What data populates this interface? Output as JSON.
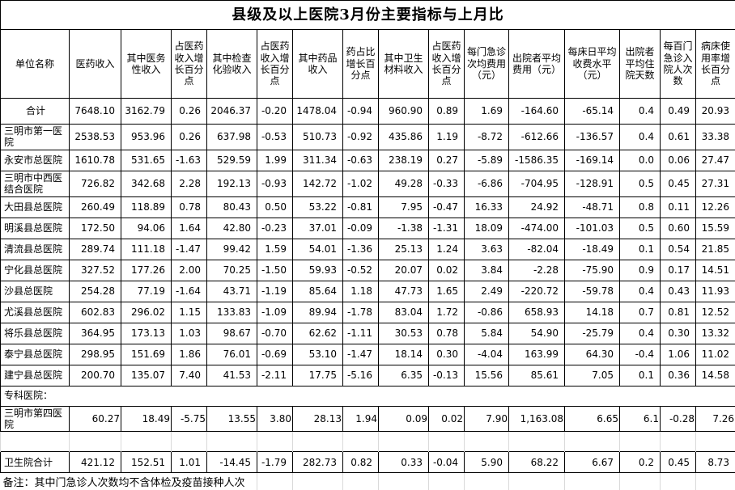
{
  "title": "县级及以上医院3月份主要指标与上月比",
  "note": "备注：其中门急诊人次数均不含体检及疫苗接种人次",
  "colors": {
    "border": "#000000",
    "gridline": "#d9d9d9",
    "text": "#000000",
    "background": "#ffffff"
  },
  "table": {
    "headers": [
      "单位名称",
      "医药收入",
      "其中医务性收入",
      "占医药收入增长百分点",
      "其中检查化验收入",
      "占医药收入增长百分点",
      "其中药品收入",
      "药占比增长百分点",
      "其中卫生材料收入",
      "占医药收入增长百分点",
      "每门急诊次均费用（元）",
      "出院者平均费用（元）",
      "每床日平均收费水平（元）",
      "出院者平均住院天数",
      "每百门急诊入院人次数",
      "病床使用率增长百分点"
    ],
    "rows": [
      {
        "name": "合计",
        "style": "total",
        "values": [
          "7648.10",
          "3162.79",
          "0.26",
          "2046.37",
          "-0.20",
          "1478.04",
          "-0.94",
          "960.90",
          "0.89",
          "1.69",
          "-164.60",
          "-65.14",
          "0.4",
          "0.49",
          "20.93"
        ]
      },
      {
        "name": "三明市第一医院",
        "style": "normal",
        "values": [
          "2538.53",
          "953.96",
          "0.26",
          "637.98",
          "-0.53",
          "510.73",
          "-0.92",
          "435.86",
          "1.19",
          "-8.72",
          "-612.66",
          "-136.57",
          "0.4",
          "0.61",
          "33.38"
        ]
      },
      {
        "name": "永安市总医院",
        "style": "normal",
        "values": [
          "1610.78",
          "531.65",
          "-1.63",
          "529.59",
          "1.99",
          "311.34",
          "-0.63",
          "238.19",
          "0.27",
          "-5.89",
          "-1586.35",
          "-169.14",
          "0.0",
          "0.06",
          "27.47"
        ]
      },
      {
        "name": "三明市中西医结合医院",
        "style": "normal",
        "values": [
          "726.82",
          "342.68",
          "2.28",
          "192.13",
          "-0.93",
          "142.72",
          "-1.02",
          "49.28",
          "-0.33",
          "-6.86",
          "-704.95",
          "-128.91",
          "0.5",
          "0.45",
          "27.31"
        ]
      },
      {
        "name": "大田县总医院",
        "style": "normal",
        "values": [
          "260.49",
          "118.89",
          "0.78",
          "80.43",
          "0.50",
          "53.22",
          "-0.81",
          "7.95",
          "-0.47",
          "16.33",
          "24.92",
          "-48.71",
          "0.8",
          "0.11",
          "12.26"
        ]
      },
      {
        "name": "明溪县总医院",
        "style": "normal",
        "values": [
          "172.50",
          "94.06",
          "1.64",
          "42.80",
          "-0.23",
          "37.01",
          "-0.09",
          "-1.38",
          "-1.31",
          "18.09",
          "-474.00",
          "-101.03",
          "0.5",
          "0.60",
          "15.59"
        ]
      },
      {
        "name": "清流县总医院",
        "style": "normal",
        "values": [
          "289.74",
          "111.18",
          "-1.47",
          "99.42",
          "1.59",
          "54.01",
          "-1.36",
          "25.13",
          "1.24",
          "3.63",
          "-82.04",
          "-18.49",
          "0.1",
          "0.54",
          "21.85"
        ]
      },
      {
        "name": "宁化县总医院",
        "style": "normal",
        "values": [
          "327.52",
          "177.26",
          "2.00",
          "70.25",
          "-1.50",
          "59.93",
          "-0.52",
          "20.07",
          "0.02",
          "3.84",
          "-2.28",
          "-75.90",
          "0.9",
          "0.17",
          "14.51"
        ]
      },
      {
        "name": "沙县总医院",
        "style": "normal",
        "values": [
          "254.28",
          "77.19",
          "-1.64",
          "43.71",
          "-1.19",
          "85.64",
          "1.18",
          "47.73",
          "1.65",
          "2.49",
          "-220.72",
          "-59.78",
          "0.4",
          "0.43",
          "11.93"
        ]
      },
      {
        "name": "尤溪县总医院",
        "style": "normal",
        "values": [
          "602.83",
          "296.02",
          "1.15",
          "133.83",
          "-1.09",
          "89.94",
          "-1.78",
          "83.04",
          "1.72",
          "-0.86",
          "658.93",
          "14.18",
          "0.7",
          "0.81",
          "12.52"
        ]
      },
      {
        "name": "将乐县总医院",
        "style": "normal",
        "values": [
          "364.95",
          "173.13",
          "1.03",
          "98.67",
          "-0.70",
          "62.62",
          "-1.11",
          "30.53",
          "0.78",
          "5.84",
          "54.90",
          "-25.79",
          "0.4",
          "0.30",
          "13.32"
        ]
      },
      {
        "name": "泰宁县总医院",
        "style": "normal",
        "values": [
          "298.95",
          "151.69",
          "1.86",
          "76.01",
          "-0.69",
          "53.10",
          "-1.47",
          "18.14",
          "0.30",
          "-4.04",
          "163.99",
          "64.30",
          "-0.4",
          "1.06",
          "11.02"
        ]
      },
      {
        "name": "建宁县总医院",
        "style": "normal",
        "values": [
          "200.70",
          "135.07",
          "7.40",
          "41.53",
          "-2.11",
          "17.75",
          "-5.16",
          "6.35",
          "-0.13",
          "15.56",
          "85.61",
          "7.05",
          "0.1",
          "0.36",
          "14.58"
        ]
      },
      {
        "name": "专科医院：",
        "style": "section",
        "values": []
      },
      {
        "name": "三明市第四医院",
        "style": "flush",
        "values": [
          "60.27",
          "18.49",
          "-5.75",
          "13.55",
          "3.80",
          "28.13",
          "1.94",
          "0.09",
          "0.02",
          "7.90",
          "1,163.08",
          "6.65",
          "6.1",
          "-0.28",
          "7.26"
        ]
      },
      {
        "name": "",
        "style": "spacer",
        "values": []
      },
      {
        "name": "卫生院合计",
        "style": "subtotal",
        "values": [
          "421.12",
          "152.51",
          "1.01",
          "-14.45",
          "-1.79",
          "282.73",
          "0.82",
          "0.33",
          "-0.04",
          "5.90",
          "68.22",
          "6.67",
          "0.2",
          "0.45",
          "8.73"
        ]
      }
    ]
  }
}
